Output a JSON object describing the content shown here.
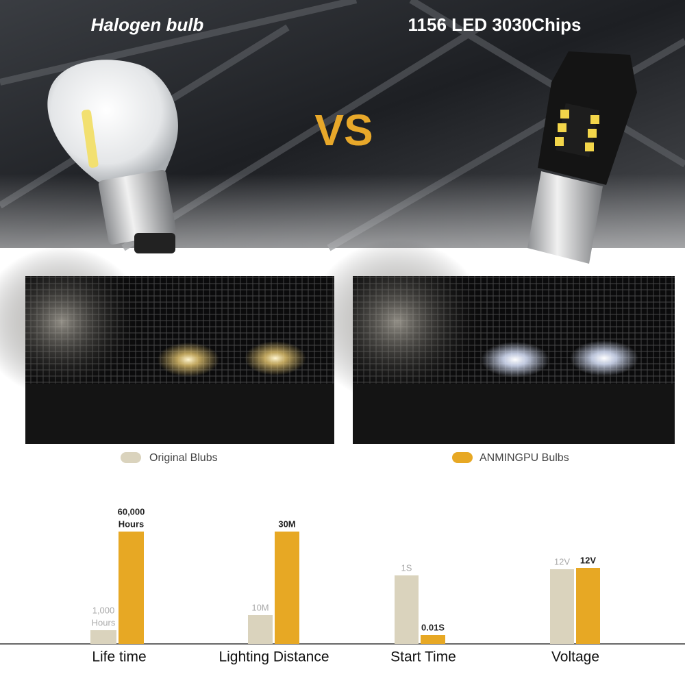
{
  "header": {
    "left_title": "Halogen bulb",
    "right_title": "1156 LED 3030Chips",
    "vs": "VS"
  },
  "legend": {
    "original": "Original Blubs",
    "anmingpu": "ANMINGPU Bulbs"
  },
  "comparison": [
    {
      "category": "Life time",
      "original": [
        "1,000",
        "Hours"
      ],
      "anmingpu": [
        "60,000",
        "Hours"
      ]
    },
    {
      "category": "Lighting Distance",
      "original": [
        "10M"
      ],
      "anmingpu": [
        "30M"
      ]
    },
    {
      "category": "Start Time",
      "original": [
        "1S"
      ],
      "anmingpu": [
        "0.01S"
      ]
    },
    {
      "category": "Voltage",
      "original": [
        "12V"
      ],
      "anmingpu": [
        "12V"
      ]
    }
  ]
}
